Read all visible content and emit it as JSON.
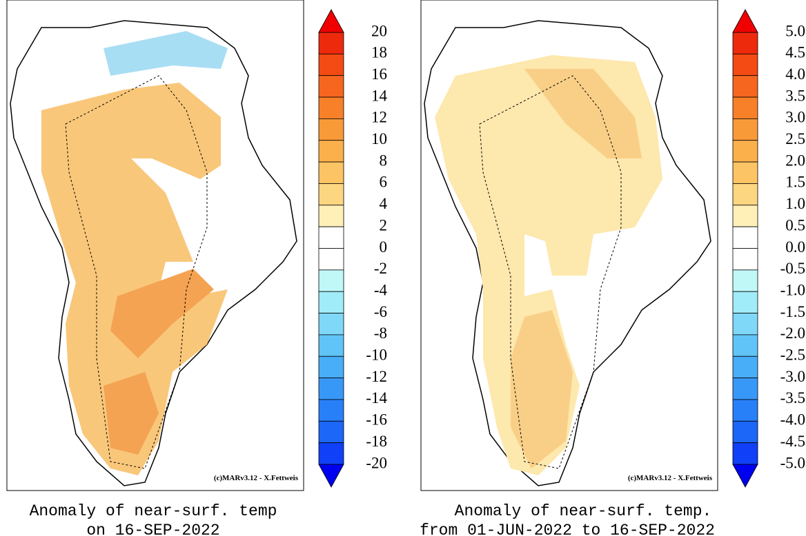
{
  "panels": [
    {
      "caption": [
        "Anomaly of near-surf. temp",
        "on 16-SEP-2022"
      ],
      "credit": "(c)MARv3.12 - X.Fettweis",
      "colorbar": {
        "labels": [
          "20",
          "18",
          "16",
          "14",
          "12",
          "10",
          "8",
          "6",
          "4",
          "2",
          "0",
          "-2",
          "-4",
          "-6",
          "-8",
          "-10",
          "-12",
          "-14",
          "-16",
          "-18",
          "-20"
        ],
        "colors": [
          "#ee2a0c",
          "#f44a14",
          "#f7661e",
          "#f88028",
          "#f99a38",
          "#fbb04c",
          "#fcc464",
          "#fdd682",
          "#fff0b8",
          "#ffffff",
          "#ffffff",
          "#c0f8f8",
          "#a0ecf8",
          "#80d8f8",
          "#60c4f8",
          "#48aef8",
          "#3898f8",
          "#2880f8",
          "#1c66f8",
          "#1040f8"
        ],
        "over": "#f00000",
        "under": "#0000f0"
      }
    },
    {
      "caption": [
        "Anomaly of near-surf. temp.",
        "from 01-JUN-2022 to 16-SEP-2022"
      ],
      "credit": "(c)MARv3.12 - X.Fettweis",
      "colorbar": {
        "labels": [
          "5.0",
          "4.5",
          "4.0",
          "3.5",
          "3.0",
          "2.5",
          "2.0",
          "1.5",
          "1.0",
          "0.5",
          "0.0",
          "-0.5",
          "-1.0",
          "-1.5",
          "-2.0",
          "-2.5",
          "-3.0",
          "-3.5",
          "-4.0",
          "-4.5",
          "-5.0"
        ],
        "colors": [
          "#ee2a0c",
          "#f44a14",
          "#f7661e",
          "#f88028",
          "#f99a38",
          "#fbb04c",
          "#fcc464",
          "#fdd682",
          "#fff0b8",
          "#ffffff",
          "#ffffff",
          "#c0f8f8",
          "#a0ecf8",
          "#80d8f8",
          "#60c4f8",
          "#48aef8",
          "#3898f8",
          "#2880f8",
          "#1c66f8",
          "#1040f8"
        ],
        "over": "#f00000",
        "under": "#0000f0"
      }
    }
  ]
}
